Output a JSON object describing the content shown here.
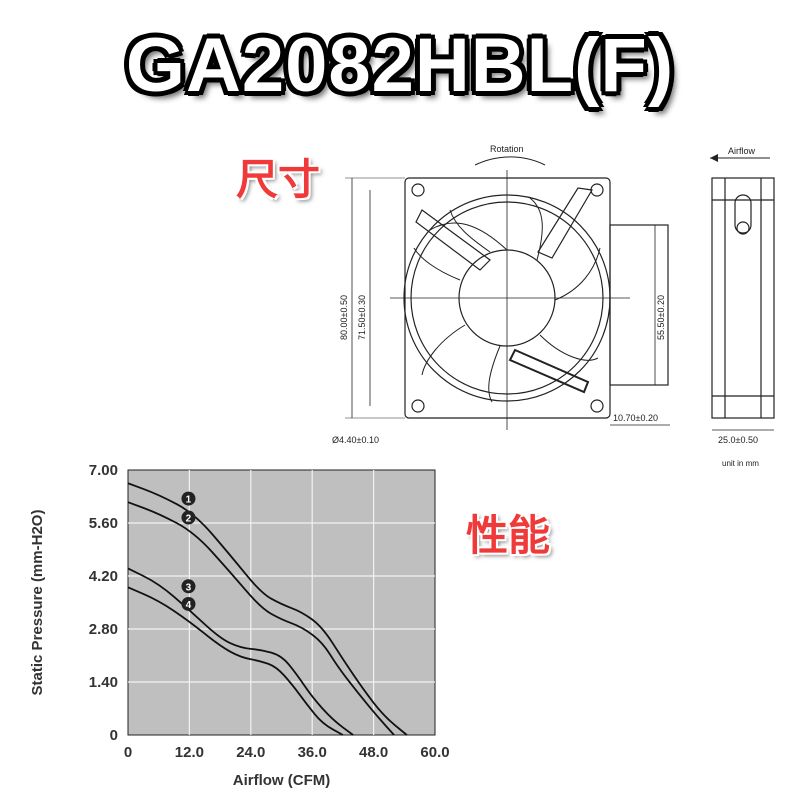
{
  "title": "GA2082HBL(F)",
  "dims_label": "尺寸",
  "perf_label": "性能",
  "drawing": {
    "rotation": "Rotation",
    "airflow": "Airflow",
    "dim_outer": "80.00±0.50",
    "dim_hole": "71.50±0.30",
    "dim_hub": "55.50±0.20",
    "dim_hole_dia": "Ø4.40±0.10",
    "dim_offset": "10.70±0.20",
    "dim_depth": "25.0±0.50",
    "unit": "unit in mm"
  },
  "chart_data": {
    "type": "line",
    "xlabel": "Airflow (CFM)",
    "ylabel": "Static Pressure (mm-H2O)",
    "xlim": [
      0,
      60
    ],
    "ylim": [
      0,
      7
    ],
    "xticks": [
      "0",
      "12.0",
      "24.0",
      "36.0",
      "48.0",
      "60.0"
    ],
    "yticks": [
      "0",
      "1.40",
      "2.80",
      "4.20",
      "5.60",
      "7.00"
    ],
    "grid": true,
    "series": [
      {
        "name": "1",
        "x": [
          0,
          6,
          13,
          20,
          26,
          30,
          34,
          38,
          42,
          46,
          50,
          54.5
        ],
        "y": [
          6.65,
          6.35,
          5.85,
          4.75,
          3.75,
          3.45,
          3.25,
          2.85,
          2.0,
          1.2,
          0.5,
          0
        ]
      },
      {
        "name": "2",
        "x": [
          0,
          6,
          13,
          20,
          26,
          30,
          34,
          38,
          41,
          45,
          49,
          52
        ],
        "y": [
          6.15,
          5.85,
          5.35,
          4.3,
          3.35,
          3.05,
          2.85,
          2.45,
          1.8,
          1.1,
          0.45,
          0
        ]
      },
      {
        "name": "3",
        "x": [
          0,
          6,
          12,
          18,
          22,
          26,
          30,
          33,
          36,
          40,
          44
        ],
        "y": [
          4.4,
          4.0,
          3.3,
          2.55,
          2.3,
          2.25,
          2.1,
          1.6,
          1.0,
          0.4,
          0
        ]
      },
      {
        "name": "4",
        "x": [
          0,
          6,
          12,
          18,
          22,
          26,
          29,
          32,
          35,
          38,
          42
        ],
        "y": [
          3.9,
          3.55,
          3.0,
          2.35,
          2.05,
          1.95,
          1.8,
          1.35,
          0.8,
          0.3,
          0
        ]
      }
    ]
  }
}
